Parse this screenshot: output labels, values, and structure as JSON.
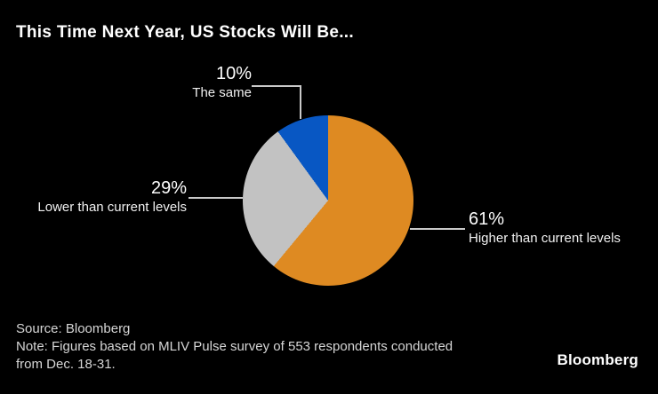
{
  "title": "This Time Next Year, US Stocks Will Be...",
  "chart_data": {
    "type": "pie",
    "title": "This Time Next Year, US Stocks Will Be...",
    "unit": "%",
    "start_angle_deg": 0,
    "direction": "clockwise",
    "legend_position": "callout-labels",
    "slices": [
      {
        "name": "Higher than current levels",
        "value": 61,
        "pct_label": "61%",
        "color": "#DE8A22"
      },
      {
        "name": "Lower than current levels",
        "value": 29,
        "pct_label": "29%",
        "color": "#C2C2C2"
      },
      {
        "name": "The same",
        "value": 10,
        "pct_label": "10%",
        "color": "#0857C3"
      }
    ]
  },
  "footer": {
    "source_line": "Source: Bloomberg",
    "note_line1": "Note: Figures based on MLIV Pulse survey of 553 respondents conducted",
    "note_line2": "from Dec. 18-31.",
    "brand": "Bloomberg"
  },
  "colors": {
    "background": "#000000",
    "title_text": "#FFFFFF",
    "label_text": "#F0F0F0",
    "footer_text": "#D6D6D6",
    "leader_line": "#C9C9C9"
  }
}
